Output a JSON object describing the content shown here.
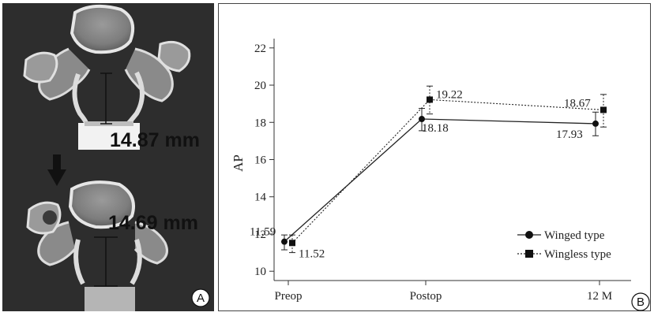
{
  "panel_a": {
    "measurement_top": "14.87 mm",
    "measurement_bottom": "14.69 mm",
    "label": "A"
  },
  "panel_b": {
    "label": "B"
  },
  "chart_data": {
    "type": "line",
    "categories": [
      "Preop",
      "Postop",
      "12 M"
    ],
    "ylabel": "AP",
    "xlabel": "",
    "ylim": [
      9.5,
      22.5
    ],
    "yticks": [
      10,
      12,
      14,
      16,
      18,
      20,
      22
    ],
    "series": [
      {
        "name": "Winged type",
        "values": [
          11.59,
          18.18,
          17.93
        ],
        "labels": [
          "11.59",
          "18.18",
          "17.93"
        ],
        "error_low": [
          11.15,
          17.55,
          17.28
        ],
        "error_high": [
          11.95,
          18.75,
          18.55
        ],
        "marker": "circle",
        "line_style": "solid"
      },
      {
        "name": "Wingless type",
        "values": [
          11.52,
          19.22,
          18.67
        ],
        "labels": [
          "11.52",
          "19.22",
          "18.67"
        ],
        "error_low": [
          11.0,
          18.45,
          17.75
        ],
        "error_high": [
          11.95,
          19.95,
          19.5
        ],
        "marker": "square",
        "line_style": "dotted"
      }
    ],
    "legend_position": "bottom-right",
    "grid": false
  }
}
